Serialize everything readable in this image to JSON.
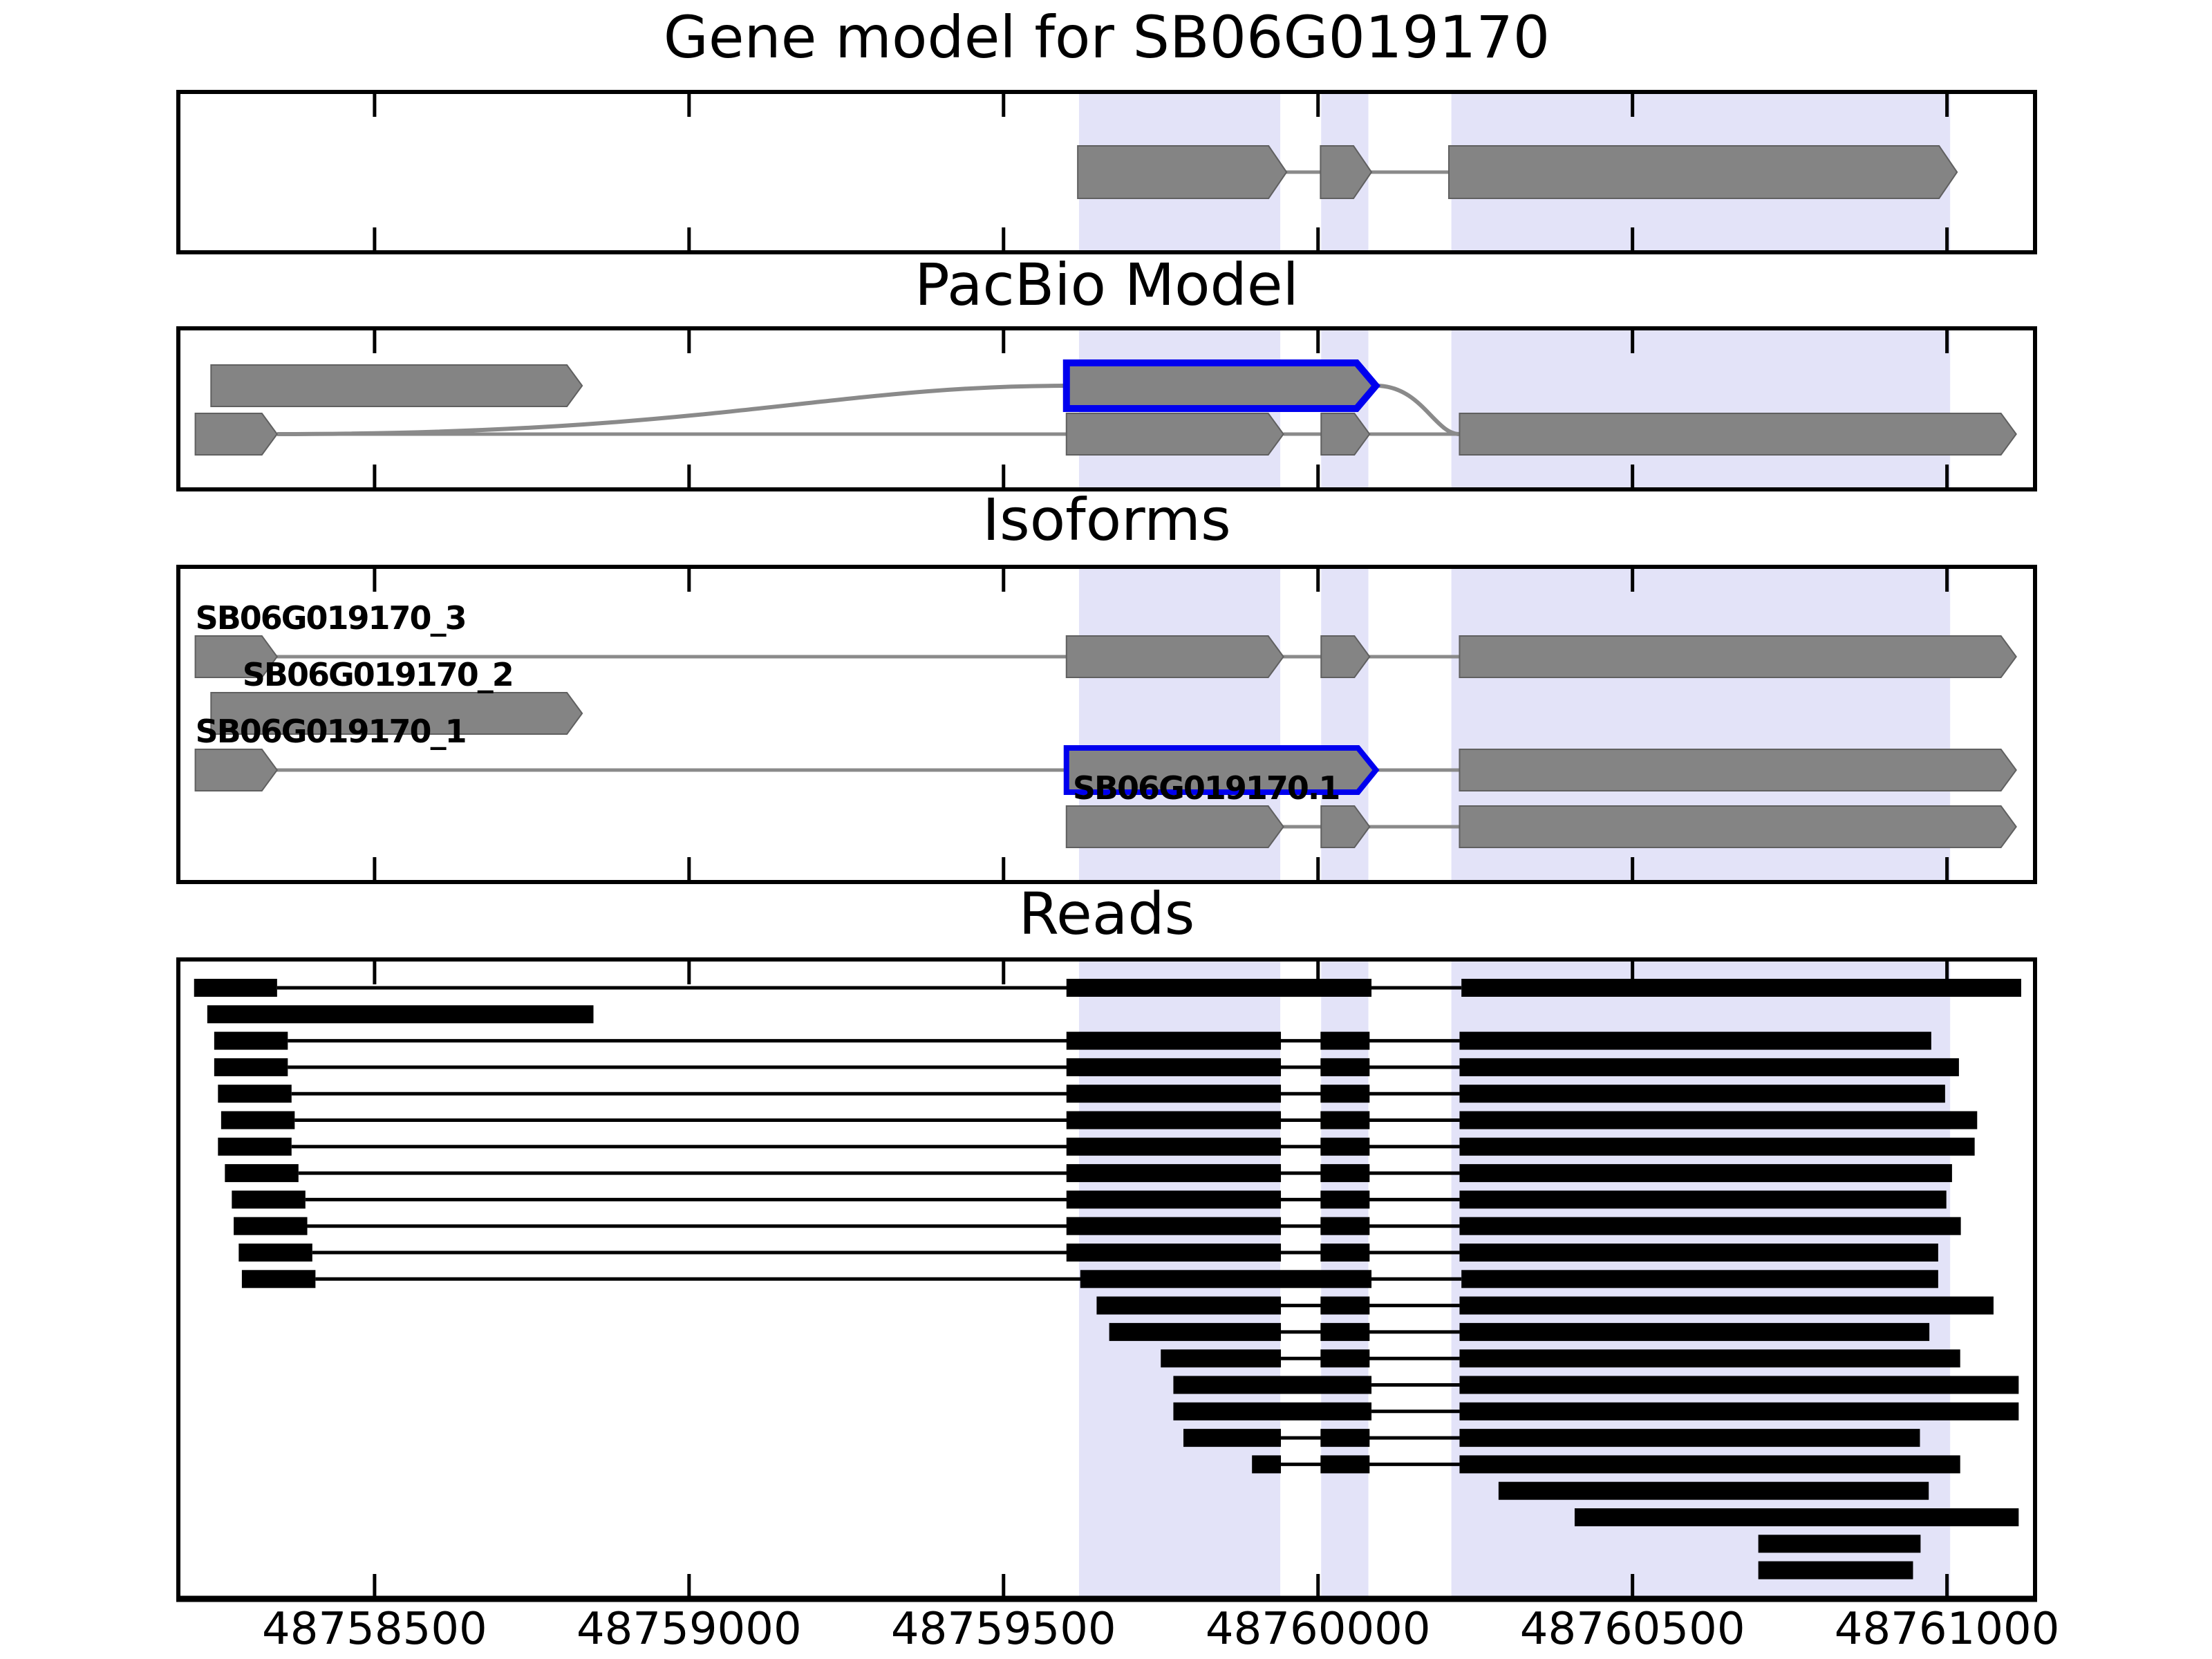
{
  "panels": {
    "gene_model": {
      "title": "Gene model for SB06G019170"
    },
    "pacbio": {
      "title": "PacBio Model"
    },
    "isoforms": {
      "title": "Isoforms"
    },
    "reads": {
      "title": "Reads"
    }
  },
  "axis": {
    "tick_labels": [
      "48758500",
      "48759000",
      "48759500",
      "48760000",
      "48760500",
      "48761000"
    ]
  },
  "colors": {
    "highlight": "#e3e3f8",
    "exon_fill": "#848484",
    "exon_edge": "#606060",
    "connector": "#8a8a8a",
    "novel_outline": "#0000ee",
    "read": "#000000",
    "border": "#000000",
    "text": "#000000"
  },
  "chart_data": {
    "type": "gene-model-tracks",
    "strand": "+",
    "xlim": [
      48758188,
      48761140
    ],
    "x_ticks": [
      48758500,
      48759000,
      48759500,
      48760000,
      48760500,
      48761000
    ],
    "highlight_regions": [
      [
        48759620,
        48759940
      ],
      [
        48760005,
        48760080
      ],
      [
        48760212,
        48761005
      ]
    ],
    "gene_model": {
      "exons": [
        [
          48759618,
          48759950
        ],
        [
          48760004,
          48760085
        ],
        [
          48760208,
          48761016
        ]
      ]
    },
    "pacbio": {
      "rows": [
        {
          "level": 0,
          "exons": [
            {
              "span": [
                48758240,
                48758830
              ],
              "novel": false
            },
            {
              "span": [
                48759600,
                48760092
              ],
              "novel": true
            }
          ]
        },
        {
          "level": 1,
          "exons": [
            {
              "span": [
                48758215,
                48758345
              ],
              "novel": false
            },
            {
              "span": [
                48759600,
                48759945
              ],
              "novel": false
            },
            {
              "span": [
                48760005,
                48760082
              ],
              "novel": false
            },
            {
              "span": [
                48760225,
                48761110
              ],
              "novel": false
            }
          ]
        }
      ],
      "junction_lines": [
        {
          "from_bp": 48758345,
          "from_level": 1,
          "to_bp": 48759600,
          "to_level": 1
        },
        {
          "from_bp": 48759945,
          "from_level": 1,
          "to_bp": 48760005,
          "to_level": 1
        },
        {
          "from_bp": 48760082,
          "from_level": 1,
          "to_bp": 48760225,
          "to_level": 1
        }
      ],
      "junction_curves": [
        {
          "from_bp": 48758345,
          "from_level": 1,
          "to_bp": 48759600,
          "to_level": 0
        },
        {
          "from_bp": 48760092,
          "from_level": 0,
          "to_bp": 48760225,
          "to_level": 1
        }
      ]
    },
    "isoforms": [
      {
        "name": "SB06G019170_3",
        "label_at": 48758215,
        "blue_exon_index": -1,
        "exons": [
          [
            48758215,
            48758345
          ],
          [
            48759600,
            48759945
          ],
          [
            48760005,
            48760082
          ],
          [
            48760225,
            48761110
          ]
        ]
      },
      {
        "name": "SB06G019170_2",
        "label_at": 48758290,
        "blue_exon_index": -1,
        "exons": [
          [
            48758240,
            48758830
          ]
        ]
      },
      {
        "name": "SB06G019170_1",
        "label_at": 48758215,
        "blue_exon_index": 1,
        "exons": [
          [
            48758215,
            48758345
          ],
          [
            48759600,
            48760092
          ],
          [
            48760225,
            48761110
          ]
        ]
      },
      {
        "name": "SB06G019170.1",
        "label_at": 48759610,
        "blue_exon_index": -1,
        "exons": [
          [
            48759600,
            48759945
          ],
          [
            48760005,
            48760082
          ],
          [
            48760225,
            48761110
          ]
        ]
      }
    ],
    "reads": [
      [
        [
          48758213,
          48758345
        ],
        [
          48759600,
          48760085
        ],
        [
          48760228,
          48761118
        ]
      ],
      [
        [
          48758234,
          48758848
        ]
      ],
      [
        [
          48758245,
          48758362
        ],
        [
          48759600,
          48759941
        ],
        [
          48760004,
          48760082
        ],
        [
          48760225,
          48760975
        ]
      ],
      [
        [
          48758245,
          48758362
        ],
        [
          48759600,
          48759941
        ],
        [
          48760004,
          48760082
        ],
        [
          48760225,
          48761019
        ]
      ],
      [
        [
          48758251,
          48758368
        ],
        [
          48759600,
          48759941
        ],
        [
          48760004,
          48760082
        ],
        [
          48760225,
          48760997
        ]
      ],
      [
        [
          48758256,
          48758373
        ],
        [
          48759600,
          48759941
        ],
        [
          48760004,
          48760082
        ],
        [
          48760225,
          48761048
        ]
      ],
      [
        [
          48758251,
          48758368
        ],
        [
          48759600,
          48759941
        ],
        [
          48760004,
          48760082
        ],
        [
          48760225,
          48761044
        ]
      ],
      [
        [
          48758262,
          48758379
        ],
        [
          48759600,
          48759941
        ],
        [
          48760004,
          48760082
        ],
        [
          48760225,
          48761008
        ]
      ],
      [
        [
          48758273,
          48758390
        ],
        [
          48759600,
          48759941
        ],
        [
          48760004,
          48760082
        ],
        [
          48760225,
          48760999
        ]
      ],
      [
        [
          48758276,
          48758393
        ],
        [
          48759600,
          48759941
        ],
        [
          48760004,
          48760082
        ],
        [
          48760225,
          48761022
        ]
      ],
      [
        [
          48758284,
          48758401
        ],
        [
          48759600,
          48759941
        ],
        [
          48760004,
          48760082
        ],
        [
          48760225,
          48760986
        ]
      ],
      [
        [
          48758289,
          48758406
        ],
        [
          48759622,
          48760085
        ],
        [
          48760228,
          48760986
        ]
      ],
      [
        [
          48759648,
          48759941
        ],
        [
          48760004,
          48760082
        ],
        [
          48760225,
          48761074
        ]
      ],
      [
        [
          48759668,
          48759941
        ],
        [
          48760004,
          48760082
        ],
        [
          48760225,
          48760972
        ]
      ],
      [
        [
          48759750,
          48759941
        ],
        [
          48760004,
          48760082
        ],
        [
          48760225,
          48761021
        ]
      ],
      [
        [
          48759770,
          48760085
        ],
        [
          48760225,
          48761114
        ]
      ],
      [
        [
          48759770,
          48760085
        ],
        [
          48760225,
          48761114
        ]
      ],
      [
        [
          48759786,
          48759941
        ],
        [
          48760004,
          48760082
        ],
        [
          48760225,
          48760957
        ]
      ],
      [
        [
          48759895,
          48759941
        ],
        [
          48760004,
          48760082
        ],
        [
          48760225,
          48761021
        ]
      ],
      [
        [
          48760287,
          48760971
        ]
      ],
      [
        [
          48760408,
          48761114
        ]
      ],
      [
        [
          48760700,
          48760958
        ]
      ],
      [
        [
          48760700,
          48760946
        ]
      ]
    ]
  }
}
